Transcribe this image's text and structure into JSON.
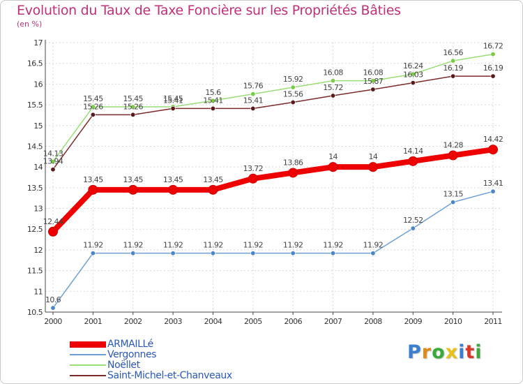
{
  "title": "Evolution du Taux de Taxe Foncière sur les Propriétés Bâties",
  "unit": "(en %)",
  "logo": {
    "chars": [
      "P",
      "r",
      "o",
      "x",
      "i",
      "t",
      "i"
    ],
    "colors": [
      "#3a7fd0",
      "#e08a1a",
      "#3aa83a",
      "#e8c21a",
      "#3a7fd0",
      "#d83a2a",
      "#3aa83a"
    ]
  },
  "chart_data": {
    "type": "line",
    "title": "Evolution du Taux de Taxe Foncière sur les Propriétés Bâties",
    "ylabel": "(en %)",
    "xlabel": "",
    "categories": [
      "2000",
      "2001",
      "2002",
      "2003",
      "2004",
      "2005",
      "2006",
      "2007",
      "2008",
      "2009",
      "2010",
      "2011"
    ],
    "ylim": [
      10.5,
      17
    ],
    "yticks": [
      10.5,
      11,
      11.5,
      12,
      12.5,
      13,
      13.5,
      14,
      14.5,
      15,
      15.5,
      16,
      16.5,
      17
    ],
    "grid": true,
    "series": [
      {
        "name": "ARMAILLé",
        "color": "#ee0000",
        "width": 8,
        "values": [
          12.44,
          13.45,
          13.45,
          13.45,
          13.45,
          13.72,
          13.86,
          14,
          14,
          14.14,
          14.28,
          14.42
        ],
        "labels": [
          "12.44",
          "13.45",
          "13.45",
          "13.45",
          "13.45",
          "13.72",
          "13.86",
          "14",
          "14",
          "14.14",
          "14.28",
          "14.42"
        ]
      },
      {
        "name": "Vergonnes",
        "color": "#6f9fd4",
        "width": 1.5,
        "values": [
          10.6,
          11.92,
          11.92,
          11.92,
          11.92,
          11.92,
          11.92,
          11.92,
          11.92,
          12.52,
          13.15,
          13.41
        ],
        "labels": [
          "10.6",
          "11.92",
          "11.92",
          "11.92",
          "11.92",
          "11.92",
          "11.92",
          "11.92",
          "11.92",
          "12.52",
          "13.15",
          "13.41"
        ]
      },
      {
        "name": "Noëllet",
        "color": "#99dd77",
        "width": 1.5,
        "values": [
          14.13,
          15.45,
          15.45,
          15.45,
          15.6,
          15.76,
          15.92,
          16.08,
          16.08,
          16.24,
          16.56,
          16.72
        ],
        "labels": [
          "14.13",
          "15.45",
          "15.45",
          "15.45",
          "15.6",
          "15.76",
          "15.92",
          "16.08",
          "16.08",
          "16.24",
          "16.56",
          "16.72"
        ]
      },
      {
        "name": "Saint-Michel-et-Chanveaux",
        "color": "#7a2a2a",
        "width": 1.5,
        "values": [
          13.94,
          15.26,
          15.26,
          15.41,
          15.41,
          15.41,
          15.56,
          15.72,
          15.87,
          16.03,
          16.19,
          16.19
        ],
        "labels": [
          "13.94",
          "15.26",
          "15.26",
          "15.41",
          "15.41",
          "15.41",
          "15.56",
          "15.72",
          "15.87",
          "16.03",
          "16.19",
          "16.19"
        ]
      }
    ]
  }
}
